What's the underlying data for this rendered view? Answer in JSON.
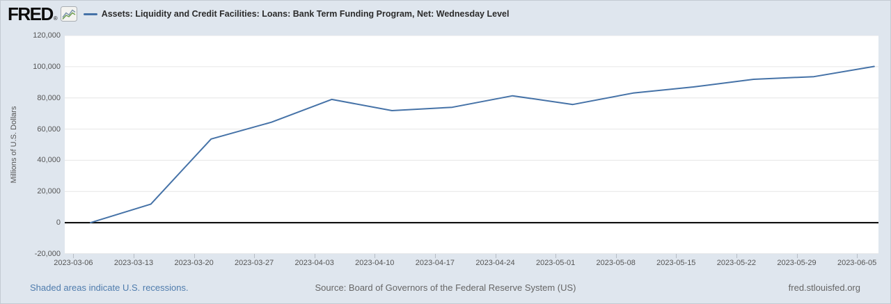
{
  "header": {
    "logo_text": "FRED",
    "registered_mark": "®",
    "legend": {
      "swatch_color": "#4572a7",
      "label": "Assets: Liquidity and Credit Facilities: Loans: Bank Term Funding Program, Net: Wednesday Level"
    }
  },
  "footer": {
    "recessions_note": "Shaded areas indicate U.S. recessions.",
    "source": "Source: Board of Governors of the Federal Reserve System (US)",
    "site": "fred.stlouisfed.org"
  },
  "colors": {
    "background": "#dfe6ee",
    "plot_background": "#ffffff",
    "series_line": "#4572a7",
    "zero_line": "#000000",
    "gridline": "#e6e6e6",
    "axis_line": "#ccd0d6",
    "axis_label": "#555555",
    "title_text": "#2b2b2b",
    "footer_link": "#4f7cad",
    "footer_text": "#666666"
  },
  "chart_data": {
    "type": "line",
    "title": "Assets: Liquidity and Credit Facilities: Loans: Bank Term Funding Program, Net: Wednesday Level",
    "xlabel": "",
    "ylabel": "Millions of U.S. Dollars",
    "ylim": [
      -20000,
      120000
    ],
    "y_ticks": [
      -20000,
      0,
      20000,
      40000,
      60000,
      80000,
      100000,
      120000
    ],
    "y_tick_labels": [
      "-20,000",
      "0",
      "20,000",
      "40,000",
      "60,000",
      "80,000",
      "100,000",
      "120,000"
    ],
    "x_domain": [
      "2023-03-05",
      "2023-06-07T12:00:00Z"
    ],
    "x_ticks": [
      "2023-03-06",
      "2023-03-13",
      "2023-03-20",
      "2023-03-27",
      "2023-04-03",
      "2023-04-10",
      "2023-04-17",
      "2023-04-24",
      "2023-05-01",
      "2023-05-08",
      "2023-05-15",
      "2023-05-22",
      "2023-05-29",
      "2023-06-05"
    ],
    "grid": "horizontal",
    "legend_position": "top-header",
    "line_color": "#4572a7",
    "zero_line_color": "#000000",
    "gridline_color": "#e6e6e6",
    "axis_line_color": "#ccd0d6",
    "series": [
      {
        "name": "Assets: Liquidity and Credit Facilities: Loans: Bank Term Funding Program, Net: Wednesday Level",
        "units": "Millions of U.S. Dollars",
        "points": [
          [
            "2023-03-08",
            0
          ],
          [
            "2023-03-15",
            11943
          ],
          [
            "2023-03-22",
            53669
          ],
          [
            "2023-03-29",
            64403
          ],
          [
            "2023-04-05",
            79021
          ],
          [
            "2023-04-12",
            71837
          ],
          [
            "2023-04-19",
            73982
          ],
          [
            "2023-04-26",
            81327
          ],
          [
            "2023-05-03",
            75778
          ],
          [
            "2023-05-10",
            83101
          ],
          [
            "2023-05-17",
            87006
          ],
          [
            "2023-05-24",
            91907
          ],
          [
            "2023-05-31",
            93615
          ],
          [
            "2023-06-07",
            100161
          ]
        ]
      }
    ]
  }
}
